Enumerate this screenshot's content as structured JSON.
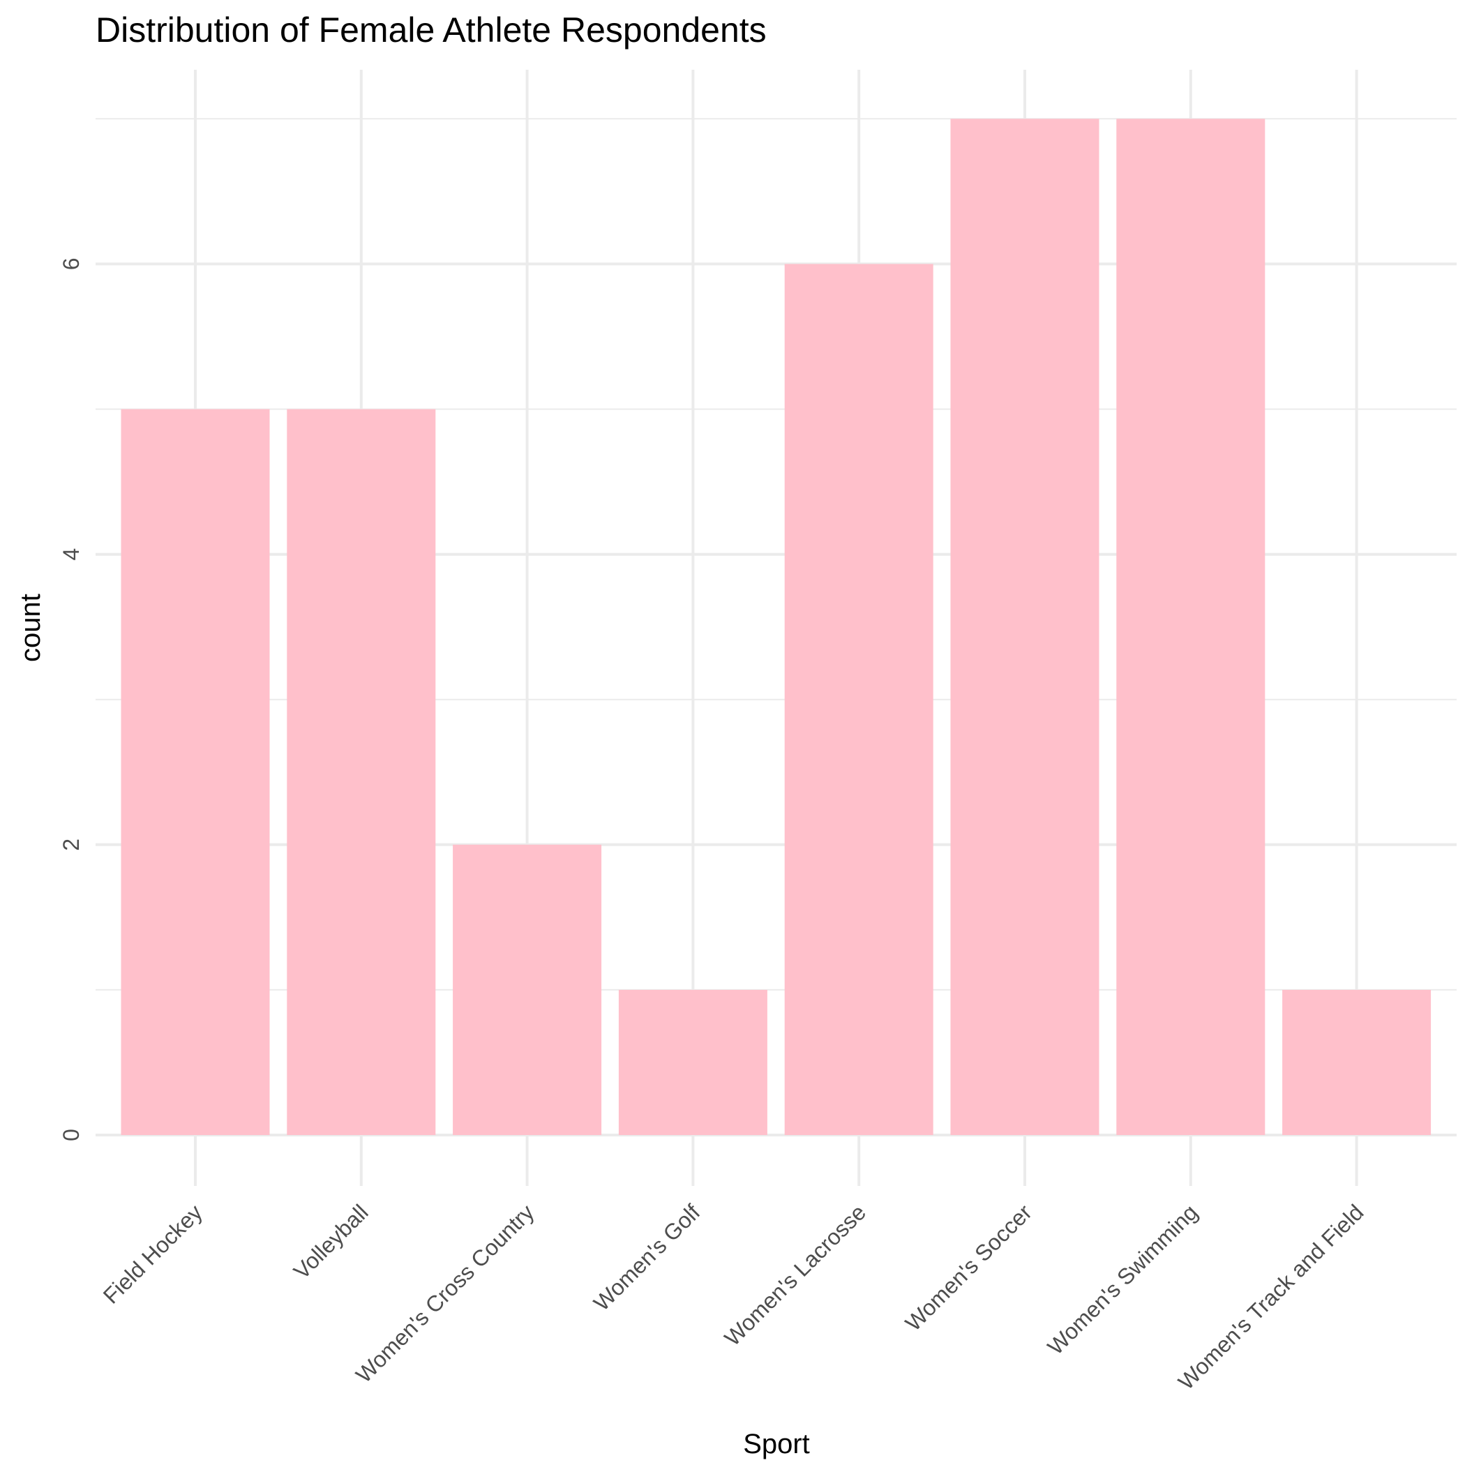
{
  "colors": {
    "bar": "#ffc0cb",
    "grid": "#ebebeb",
    "background": "#ffffff",
    "text": "#000000",
    "tick_text": "#4d4d4d"
  },
  "chart_data": {
    "type": "bar",
    "title": "Distribution of Female Athlete Respondents",
    "xlabel": "Sport",
    "ylabel": "count",
    "categories": [
      "Field Hockey",
      "Volleyball",
      "Women's Cross Country",
      "Women's Golf",
      "Women's Lacrosse",
      "Women's Soccer",
      "Women's Swimming",
      "Women's Track and Field"
    ],
    "values": [
      5,
      5,
      2,
      1,
      6,
      7,
      7,
      1
    ],
    "ylim": [
      0,
      7
    ],
    "yticks": [
      "0",
      "2",
      "4",
      "6"
    ],
    "ytick_values": [
      0,
      2,
      4,
      6
    ],
    "grid": true,
    "legend": "none"
  }
}
